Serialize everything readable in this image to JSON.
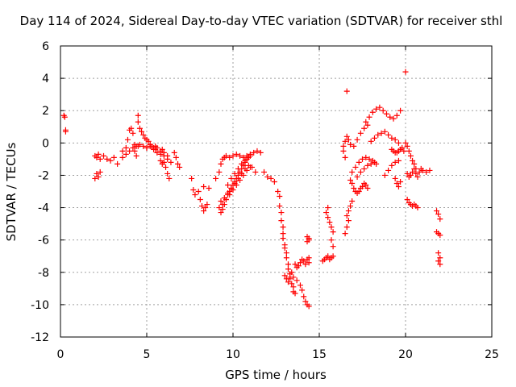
{
  "chart_data": {
    "type": "scatter",
    "title": "Day 114 of 2024, Sidereal Day-to-day VTEC variation (SDTVAR) for receiver sthl",
    "xlabel": "GPS time / hours",
    "ylabel": "SDTVAR / TECUs",
    "xlim": [
      0,
      25
    ],
    "ylim": [
      -12,
      6
    ],
    "xticks": [
      "0",
      "5",
      "10",
      "15",
      "20",
      "25"
    ],
    "yticks": [
      "-12",
      "-10",
      "-8",
      "-6",
      "-4",
      "-2",
      "0",
      "2",
      "4",
      "6"
    ],
    "grid": true,
    "marker": "+",
    "color": "#ff0000",
    "series": [
      {
        "name": "SDTVAR",
        "x": [
          0.2,
          0.25,
          0.3,
          0.3,
          2.0,
          2.1,
          2.2,
          2.3,
          2.5,
          2.7,
          2.9,
          3.1,
          3.3,
          2.0,
          2.1,
          2.2,
          2.3,
          3.6,
          3.8,
          3.9,
          4.0,
          4.1,
          4.2,
          4.3,
          4.5,
          4.6,
          4.7,
          4.8,
          4.9,
          5.0,
          5.1,
          5.2,
          5.3,
          5.4,
          5.5,
          5.6,
          5.8,
          6.0,
          6.2,
          3.6,
          3.8,
          4.0,
          4.2,
          4.4,
          4.6,
          4.8,
          5.0,
          5.2,
          5.4,
          5.6,
          5.8,
          6.0,
          6.2,
          6.4,
          4.5,
          4.5,
          4.3,
          4.4,
          5.0,
          5.5,
          5.9,
          5.8,
          5.9,
          6.0,
          6.1,
          6.2,
          6.3,
          6.6,
          6.7,
          6.8,
          6.9,
          7.6,
          7.7,
          7.8,
          8.1,
          8.2,
          8.3,
          8.4,
          8.5,
          8.0,
          8.3,
          8.6,
          9.0,
          9.2,
          9.3,
          9.4,
          9.5,
          9.6,
          9.8,
          10.0,
          10.2,
          10.4,
          10.6,
          10.8,
          11.0,
          11.2,
          11.4,
          11.6,
          9.2,
          9.3,
          9.4,
          9.5,
          9.6,
          9.7,
          9.8,
          9.9,
          10.0,
          10.1,
          10.2,
          10.3,
          10.4,
          10.5,
          10.6,
          10.7,
          10.8,
          10.9,
          11.0,
          9.3,
          9.5,
          9.7,
          9.9,
          10.1,
          10.3,
          10.5,
          10.7,
          10.9,
          11.1,
          11.3,
          9.4,
          9.6,
          9.8,
          10.0,
          10.2,
          10.4,
          10.6,
          10.8,
          11.0,
          9.7,
          9.9,
          10.1,
          10.3,
          10.5,
          10.7,
          10.9,
          11.8,
          12.0,
          12.2,
          12.4,
          12.6,
          12.7,
          12.7,
          12.8,
          12.8,
          12.9,
          12.9,
          12.9,
          13.0,
          13.0,
          13.1,
          13.1,
          13.2,
          13.2,
          13.3,
          13.3,
          13.4,
          13.5,
          13.5,
          13.6,
          13.0,
          13.1,
          13.2,
          13.3,
          13.4,
          13.5,
          13.7,
          13.9,
          14.0,
          14.1,
          14.2,
          14.3,
          14.4,
          13.6,
          13.7,
          13.8,
          13.9,
          14.0,
          14.1,
          14.2,
          14.3,
          14.4,
          14.4,
          14.3,
          14.3,
          14.4,
          14.4,
          15.2,
          15.3,
          15.4,
          15.5,
          15.6,
          15.7,
          15.8,
          15.5,
          15.4,
          15.5,
          15.6,
          15.7,
          15.8,
          15.7,
          15.8,
          16.4,
          16.5,
          16.6,
          16.7,
          16.8,
          16.5,
          16.6,
          16.7,
          16.6,
          16.7,
          16.8,
          16.9,
          16.4,
          16.5,
          16.8,
          16.9,
          17.0,
          17.1,
          17.2,
          17.3,
          17.4,
          17.5,
          17.6,
          17.7,
          17.8,
          16.9,
          17.1,
          17.3,
          17.5,
          17.7,
          17.9,
          18.1,
          18.3,
          17.0,
          17.2,
          17.4,
          17.6,
          17.8,
          17.2,
          17.4,
          17.6,
          17.8,
          18.0,
          18.2,
          17.7,
          17.9,
          18.1,
          18.3,
          18.5,
          18.7,
          18.9,
          19.1,
          19.3,
          19.5,
          19.7,
          18.0,
          18.2,
          18.4,
          18.6,
          18.8,
          19.0,
          19.2,
          19.4,
          19.6,
          19.2,
          19.3,
          19.4,
          19.5,
          19.6,
          19.7,
          19.8,
          19.9,
          18.8,
          19.0,
          19.2,
          19.4,
          19.6,
          19.4,
          19.5,
          19.6,
          19.7,
          16.6,
          20.0,
          20.0,
          20.1,
          20.2,
          20.3,
          20.4,
          20.5,
          20.6,
          20.1,
          20.2,
          20.3,
          20.4,
          20.5,
          20.6,
          20.7,
          20.8,
          20.9,
          21.0,
          21.2,
          21.4,
          20.1,
          20.2,
          20.3,
          20.4,
          20.5,
          20.6,
          20.7,
          21.8,
          21.9,
          22.0,
          21.8,
          21.9,
          22.0,
          21.9,
          22.0,
          21.9,
          22.0
        ],
        "y": [
          1.7,
          1.6,
          0.8,
          0.7,
          -0.8,
          -0.9,
          -0.7,
          -1.0,
          -0.8,
          -1.0,
          -1.1,
          -0.9,
          -1.3,
          -2.2,
          -1.9,
          -2.1,
          -1.8,
          -0.5,
          -0.3,
          0.2,
          0.8,
          0.9,
          0.6,
          -0.1,
          -0.2,
          0.9,
          0.7,
          0.5,
          0.3,
          0.2,
          0.1,
          -0.1,
          -0.2,
          -0.3,
          -0.4,
          -0.6,
          -0.7,
          -0.8,
          -1.0,
          -0.9,
          -0.7,
          -0.5,
          -0.3,
          -0.2,
          -0.1,
          -0.2,
          -0.3,
          -0.2,
          -0.4,
          -0.3,
          -0.5,
          -0.6,
          -0.8,
          -1.2,
          1.7,
          1.3,
          -0.5,
          -0.8,
          -0.3,
          -0.2,
          -0.4,
          -1.1,
          -1.3,
          -1.2,
          -1.5,
          -1.9,
          -2.2,
          -0.6,
          -0.9,
          -1.3,
          -1.5,
          -2.2,
          -2.9,
          -3.2,
          -3.5,
          -3.9,
          -4.2,
          -4.0,
          -3.8,
          -3.0,
          -2.7,
          -2.8,
          -2.2,
          -1.8,
          -1.3,
          -1.0,
          -0.9,
          -0.8,
          -0.9,
          -0.8,
          -0.7,
          -0.8,
          -0.9,
          -0.8,
          -0.7,
          -0.6,
          -0.5,
          -0.6,
          -4.0,
          -4.3,
          -4.1,
          -3.8,
          -3.5,
          -3.2,
          -3.0,
          -2.8,
          -2.6,
          -2.4,
          -2.2,
          -2.0,
          -1.8,
          -1.6,
          -1.4,
          -1.2,
          -1.0,
          -0.9,
          -0.8,
          -3.6,
          -3.4,
          -3.1,
          -2.8,
          -2.5,
          -2.2,
          -1.9,
          -1.6,
          -1.4,
          -1.5,
          -1.8,
          -3.8,
          -3.5,
          -3.2,
          -2.9,
          -2.6,
          -2.3,
          -2.0,
          -1.7,
          -1.5,
          -2.6,
          -2.2,
          -1.9,
          -1.6,
          -1.3,
          -1.1,
          -0.9,
          -1.8,
          -2.1,
          -2.2,
          -2.4,
          -3.0,
          -3.3,
          -3.9,
          -4.3,
          -4.8,
          -5.2,
          -5.6,
          -5.9,
          -6.3,
          -6.5,
          -6.8,
          -7.1,
          -7.5,
          -7.8,
          -8.1,
          -8.4,
          -8.7,
          -8.9,
          -9.2,
          -9.3,
          -8.2,
          -8.4,
          -8.6,
          -8.3,
          -8.0,
          -8.3,
          -8.5,
          -8.8,
          -9.1,
          -9.5,
          -9.8,
          -10.0,
          -10.1,
          -7.5,
          -7.7,
          -7.6,
          -7.4,
          -7.2,
          -7.3,
          -7.5,
          -7.2,
          -7.1,
          -7.4,
          -5.8,
          -6.1,
          -6.0,
          -5.9,
          -7.3,
          -7.2,
          -7.1,
          -7.0,
          -7.2,
          -7.1,
          -7.0,
          -4.0,
          -4.3,
          -4.6,
          -4.9,
          -5.2,
          -5.5,
          -6.0,
          -6.4,
          -0.2,
          0.1,
          0.4,
          0.2,
          -0.1,
          -5.6,
          -5.2,
          -4.8,
          -4.5,
          -4.2,
          -3.9,
          -3.6,
          -0.5,
          -0.9,
          -2.3,
          -2.5,
          -2.8,
          -3.0,
          -3.1,
          -3.0,
          -2.8,
          -2.7,
          -2.5,
          -2.6,
          -2.8,
          -1.8,
          -1.5,
          -1.2,
          -1.0,
          -0.9,
          -1.0,
          -1.1,
          -1.3,
          -0.2,
          0.2,
          0.6,
          0.9,
          1.1,
          -2.1,
          -1.8,
          -1.6,
          -1.4,
          -1.3,
          -1.2,
          1.3,
          1.6,
          1.9,
          2.1,
          2.2,
          2.0,
          1.8,
          1.6,
          1.5,
          1.7,
          2.0,
          0.1,
          0.3,
          0.5,
          0.6,
          0.7,
          0.5,
          0.3,
          0.2,
          0.0,
          -0.4,
          -0.5,
          -0.6,
          -0.6,
          -0.5,
          -0.4,
          -0.3,
          -0.5,
          -2.0,
          -1.7,
          -1.4,
          -1.2,
          -1.1,
          -2.2,
          -2.5,
          -2.7,
          -2.4,
          3.2,
          4.4,
          0.0,
          -0.2,
          -0.5,
          -0.8,
          -1.1,
          -1.3,
          -1.6,
          -1.9,
          -2.1,
          -2.0,
          -1.8,
          -1.6,
          -1.9,
          -2.1,
          -1.8,
          -1.6,
          -1.7,
          -1.8,
          -1.7,
          -3.5,
          -3.7,
          -3.8,
          -3.9,
          -3.8,
          -3.9,
          -4.0,
          -4.2,
          -4.4,
          -4.7,
          -5.5,
          -5.6,
          -5.7,
          -6.8,
          -7.1,
          -7.3,
          -7.5
        ]
      }
    ]
  }
}
